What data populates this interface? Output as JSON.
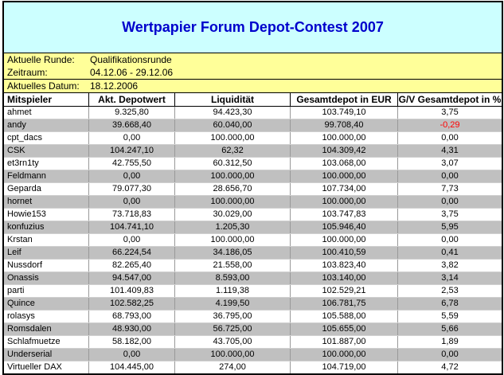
{
  "header": {
    "title": "Wertpapier Forum Depot-Contest 2007"
  },
  "info": {
    "round_label": "Aktuelle Runde:",
    "round_value": "Qualifikationsrunde",
    "period_label": "Zeitraum:",
    "period_value": "04.12.06 - 29.12.06",
    "date_label": "Aktuelles Datum:",
    "date_value": "18.12.2006"
  },
  "table": {
    "columns": [
      "Mitspieler",
      "Akt. Depotwert",
      "Liquidität",
      "Gesamtdepot in EUR",
      "G/V Gesamtdepot in %"
    ],
    "rows": [
      {
        "name": "ahmet",
        "depotwert": "9.325,80",
        "liquiditaet": "94.423,30",
        "gesamtdepot": "103.749,10",
        "gv": "3,75",
        "gv_negative": false
      },
      {
        "name": "andy",
        "depotwert": "39.668,40",
        "liquiditaet": "60.040,00",
        "gesamtdepot": "99.708,40",
        "gv": "-0,29",
        "gv_negative": true
      },
      {
        "name": "cpt_dacs",
        "depotwert": "0,00",
        "liquiditaet": "100.000,00",
        "gesamtdepot": "100.000,00",
        "gv": "0,00",
        "gv_negative": false
      },
      {
        "name": "CSK",
        "depotwert": "104.247,10",
        "liquiditaet": "62,32",
        "gesamtdepot": "104.309,42",
        "gv": "4,31",
        "gv_negative": false
      },
      {
        "name": "et3rn1ty",
        "depotwert": "42.755,50",
        "liquiditaet": "60.312,50",
        "gesamtdepot": "103.068,00",
        "gv": "3,07",
        "gv_negative": false
      },
      {
        "name": "Feldmann",
        "depotwert": "0,00",
        "liquiditaet": "100.000,00",
        "gesamtdepot": "100.000,00",
        "gv": "0,00",
        "gv_negative": false
      },
      {
        "name": "Geparda",
        "depotwert": "79.077,30",
        "liquiditaet": "28.656,70",
        "gesamtdepot": "107.734,00",
        "gv": "7,73",
        "gv_negative": false
      },
      {
        "name": "hornet",
        "depotwert": "0,00",
        "liquiditaet": "100.000,00",
        "gesamtdepot": "100.000,00",
        "gv": "0,00",
        "gv_negative": false
      },
      {
        "name": "Howie153",
        "depotwert": "73.718,83",
        "liquiditaet": "30.029,00",
        "gesamtdepot": "103.747,83",
        "gv": "3,75",
        "gv_negative": false
      },
      {
        "name": "konfuzius",
        "depotwert": "104.741,10",
        "liquiditaet": "1.205,30",
        "gesamtdepot": "105.946,40",
        "gv": "5,95",
        "gv_negative": false
      },
      {
        "name": "Krstan",
        "depotwert": "0,00",
        "liquiditaet": "100.000,00",
        "gesamtdepot": "100.000,00",
        "gv": "0,00",
        "gv_negative": false
      },
      {
        "name": "Leif",
        "depotwert": "66.224,54",
        "liquiditaet": "34.186,05",
        "gesamtdepot": "100.410,59",
        "gv": "0,41",
        "gv_negative": false
      },
      {
        "name": "Nussdorf",
        "depotwert": "82.265,40",
        "liquiditaet": "21.558,00",
        "gesamtdepot": "103.823,40",
        "gv": "3,82",
        "gv_negative": false
      },
      {
        "name": "Onassis",
        "depotwert": "94.547,00",
        "liquiditaet": "8.593,00",
        "gesamtdepot": "103.140,00",
        "gv": "3,14",
        "gv_negative": false
      },
      {
        "name": "parti",
        "depotwert": "101.409,83",
        "liquiditaet": "1.119,38",
        "gesamtdepot": "102.529,21",
        "gv": "2,53",
        "gv_negative": false
      },
      {
        "name": "Quince",
        "depotwert": "102.582,25",
        "liquiditaet": "4.199,50",
        "gesamtdepot": "106.781,75",
        "gv": "6,78",
        "gv_negative": false
      },
      {
        "name": "rolasys",
        "depotwert": "68.793,00",
        "liquiditaet": "36.795,00",
        "gesamtdepot": "105.588,00",
        "gv": "5,59",
        "gv_negative": false
      },
      {
        "name": "Romsdalen",
        "depotwert": "48.930,00",
        "liquiditaet": "56.725,00",
        "gesamtdepot": "105.655,00",
        "gv": "5,66",
        "gv_negative": false
      },
      {
        "name": "Schlafmuetze",
        "depotwert": "58.182,00",
        "liquiditaet": "43.705,00",
        "gesamtdepot": "101.887,00",
        "gv": "1,89",
        "gv_negative": false
      },
      {
        "name": "Underserial",
        "depotwert": "0,00",
        "liquiditaet": "100.000,00",
        "gesamtdepot": "100.000,00",
        "gv": "0,00",
        "gv_negative": false
      },
      {
        "name": "Virtueller DAX",
        "depotwert": "104.445,00",
        "liquiditaet": "274,00",
        "gesamtdepot": "104.719,00",
        "gv": "4,72",
        "gv_negative": false
      }
    ]
  },
  "colors": {
    "title_bg": "#ccffff",
    "title_text": "#0000cc",
    "info_bg": "#ffff99",
    "row_alt_bg": "#c0c0c0",
    "negative_value": "#ff0000"
  }
}
